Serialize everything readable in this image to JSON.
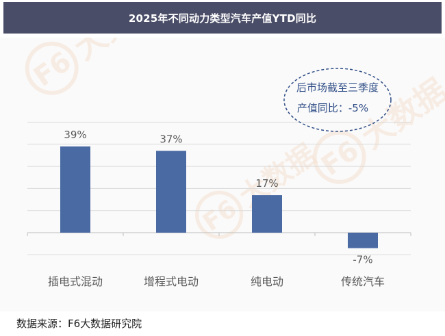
{
  "title": "2025年不同动力类型汽车产值YTD同比",
  "source": "数据来源：F6大数据研究院",
  "annotation": {
    "line1": "后市场截至三季度",
    "line2": "产值同比：-5%"
  },
  "watermark": {
    "logo": "F6",
    "text": "大数据"
  },
  "colors": {
    "bar": "#4a6aa3",
    "title_bg": "#4a4d67",
    "annotation": "#2e4c86",
    "grid": "#d9d9d9",
    "label": "#595959",
    "watermark": "#f6e2d2"
  },
  "chart_data": {
    "type": "bar",
    "categories": [
      "插电式混动",
      "增程式电动",
      "纯电动",
      "传统汽车"
    ],
    "values": [
      39,
      37,
      17,
      -7
    ],
    "data_labels": [
      "39%",
      "37%",
      "17%",
      "-7%"
    ],
    "ylim": [
      -10,
      50
    ],
    "grid": true,
    "legend": "none"
  }
}
